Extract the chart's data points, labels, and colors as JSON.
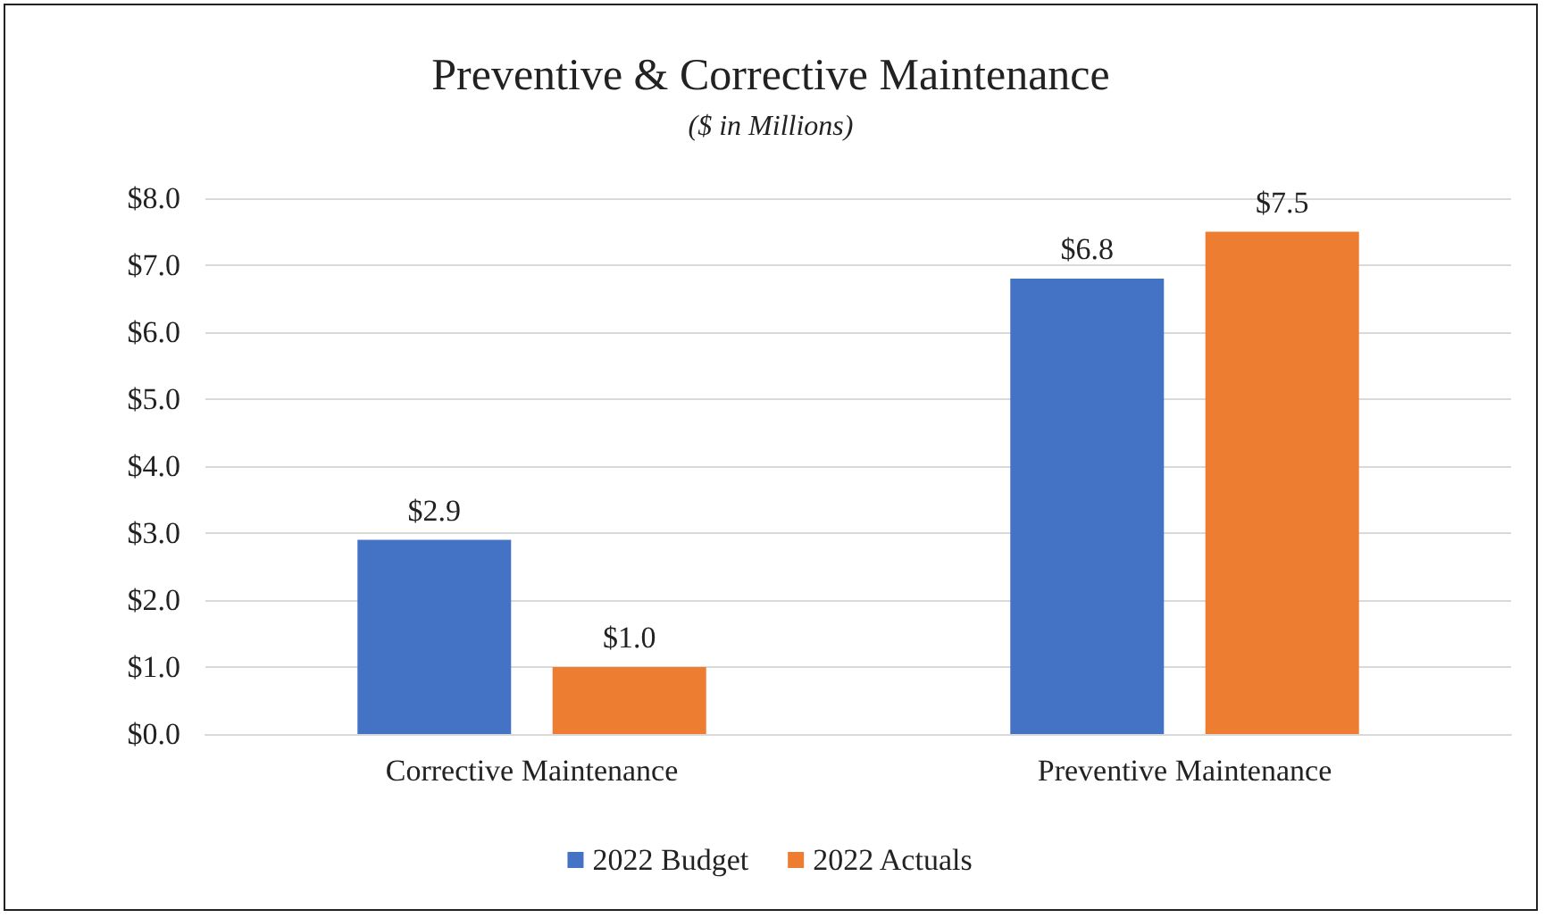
{
  "chart_data": {
    "type": "bar",
    "title": "Preventive & Corrective Maintenance",
    "subtitle": "($ in Millions)",
    "categories": [
      "Corrective Maintenance",
      "Preventive Maintenance"
    ],
    "series": [
      {
        "name": "2022 Budget",
        "color": "#4472c4",
        "values": [
          2.9,
          6.8
        ],
        "value_labels": [
          "$2.9",
          "$6.8"
        ]
      },
      {
        "name": "2022 Actuals",
        "color": "#ed7d31",
        "values": [
          1.0,
          7.5
        ],
        "value_labels": [
          "$1.0",
          "$7.5"
        ]
      }
    ],
    "ylim": [
      0,
      8
    ],
    "yticks": [
      {
        "value": 0,
        "label": "$0.0"
      },
      {
        "value": 1,
        "label": "$1.0"
      },
      {
        "value": 2,
        "label": "$2.0"
      },
      {
        "value": 3,
        "label": "$3.0"
      },
      {
        "value": 4,
        "label": "$4.0"
      },
      {
        "value": 5,
        "label": "$5.0"
      },
      {
        "value": 6,
        "label": "$6.0"
      },
      {
        "value": 7,
        "label": "$7.0"
      },
      {
        "value": 8,
        "label": "$8.0"
      }
    ],
    "grid": "y",
    "legend": "bottom"
  }
}
